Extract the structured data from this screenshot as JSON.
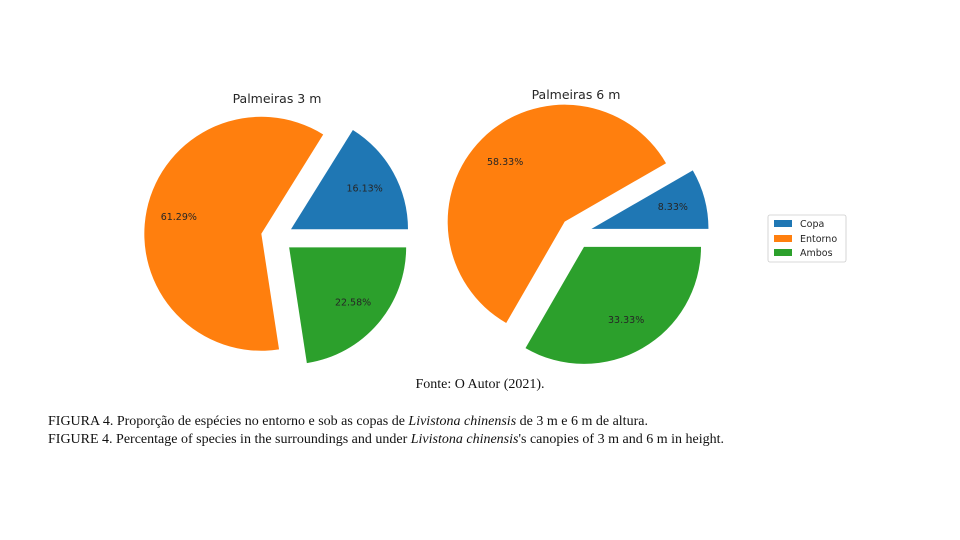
{
  "chart_data": [
    {
      "type": "pie",
      "title": "Palmeiras 3 m",
      "categories": [
        "Copa",
        "Entorno",
        "Ambos"
      ],
      "values": [
        16.13,
        61.29,
        22.58
      ],
      "labels": [
        "16.13%",
        "61.29%",
        "22.58%"
      ],
      "colors": [
        "#1f77b4",
        "#ff7f0e",
        "#2ca02c"
      ],
      "exploded": true
    },
    {
      "type": "pie",
      "title": "Palmeiras 6 m",
      "categories": [
        "Copa",
        "Entorno",
        "Ambos"
      ],
      "values": [
        8.33,
        58.33,
        33.33
      ],
      "labels": [
        "8.33%",
        "58.33%",
        "33.33%"
      ],
      "colors": [
        "#1f77b4",
        "#ff7f0e",
        "#2ca02c"
      ],
      "exploded": true
    }
  ],
  "legend": {
    "entries": [
      "Copa",
      "Entorno",
      "Ambos"
    ],
    "colors": [
      "#1f77b4",
      "#ff7f0e",
      "#2ca02c"
    ],
    "placement": "right"
  },
  "source": "Fonte: O Autor (2021).",
  "caption_pt": {
    "before": "FIGURA 4.  Proporção de espécies no entorno e sob as copas de ",
    "italic": "Livistona chinensis",
    "after": " de 3 m e 6 m de altura."
  },
  "caption_en": {
    "before": "FIGURE 4. Percentage of species in the surroundings and under ",
    "italic": "Livistona chinensis",
    "after": "'s canopies of 3 m and 6 m in height."
  }
}
